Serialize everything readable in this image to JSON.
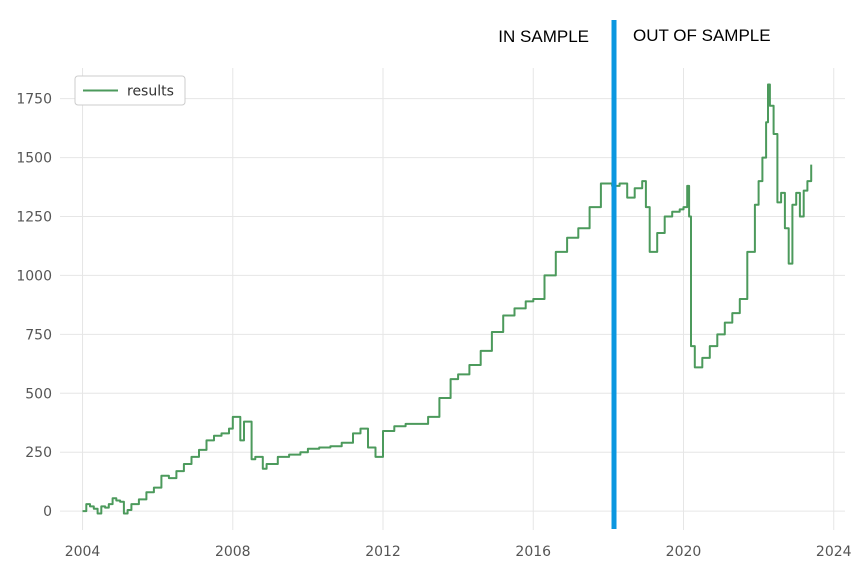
{
  "chart_data": {
    "type": "line",
    "title": "",
    "xlabel": "",
    "ylabel": "",
    "xlim": [
      2003.4,
      2024.3
    ],
    "ylim": [
      -80,
      1880
    ],
    "grid": true,
    "legend_position": "top-left",
    "x_ticks": [
      2004,
      2008,
      2012,
      2016,
      2020,
      2024
    ],
    "y_ticks": [
      0,
      250,
      500,
      750,
      1000,
      1250,
      1500,
      1750
    ],
    "x_tick_labels": [
      "2004",
      "2008",
      "2012",
      "2016",
      "2020",
      "2024"
    ],
    "y_tick_labels": [
      "0",
      "250",
      "500",
      "750",
      "1000",
      "1250",
      "1500",
      "1750"
    ],
    "series": [
      {
        "name": "results",
        "color": "#4c9a5c",
        "x": [
          2004.0,
          2004.1,
          2004.2,
          2004.3,
          2004.4,
          2004.5,
          2004.6,
          2004.7,
          2004.8,
          2004.9,
          2005.0,
          2005.1,
          2005.2,
          2005.3,
          2005.5,
          2005.7,
          2005.9,
          2006.1,
          2006.3,
          2006.5,
          2006.7,
          2006.9,
          2007.1,
          2007.3,
          2007.5,
          2007.7,
          2007.9,
          2008.0,
          2008.2,
          2008.3,
          2008.5,
          2008.6,
          2008.8,
          2008.9,
          2009.2,
          2009.5,
          2009.8,
          2010.0,
          2010.3,
          2010.6,
          2010.9,
          2011.2,
          2011.4,
          2011.6,
          2011.8,
          2012.0,
          2012.3,
          2012.6,
          2012.9,
          2013.2,
          2013.5,
          2013.8,
          2014.0,
          2014.3,
          2014.6,
          2014.9,
          2015.2,
          2015.5,
          2015.8,
          2016.0,
          2016.3,
          2016.6,
          2016.9,
          2017.2,
          2017.5,
          2017.8,
          2018.0,
          2018.1,
          2018.3,
          2018.5,
          2018.7,
          2018.9,
          2019.0,
          2019.1,
          2019.3,
          2019.5,
          2019.7,
          2019.9,
          2020.0,
          2020.1,
          2020.15,
          2020.2,
          2020.3,
          2020.5,
          2020.7,
          2020.9,
          2021.1,
          2021.3,
          2021.5,
          2021.7,
          2021.9,
          2022.0,
          2022.1,
          2022.2,
          2022.25,
          2022.3,
          2022.4,
          2022.5,
          2022.6,
          2022.7,
          2022.8,
          2022.9,
          2023.0,
          2023.1,
          2023.2,
          2023.3,
          2023.4
        ],
        "values": [
          0,
          30,
          20,
          10,
          -10,
          20,
          15,
          30,
          55,
          45,
          40,
          -10,
          5,
          30,
          50,
          80,
          100,
          150,
          140,
          170,
          200,
          230,
          260,
          300,
          320,
          330,
          350,
          400,
          300,
          380,
          220,
          230,
          180,
          200,
          230,
          240,
          250,
          265,
          270,
          275,
          290,
          330,
          350,
          270,
          230,
          340,
          360,
          370,
          370,
          400,
          480,
          560,
          580,
          620,
          680,
          760,
          830,
          860,
          890,
          900,
          1000,
          1100,
          1160,
          1200,
          1290,
          1390,
          1390,
          1380,
          1390,
          1330,
          1370,
          1400,
          1290,
          1100,
          1180,
          1250,
          1270,
          1280,
          1290,
          1380,
          1250,
          700,
          610,
          650,
          700,
          750,
          800,
          840,
          900,
          1100,
          1300,
          1400,
          1500,
          1650,
          1810,
          1720,
          1600,
          1310,
          1350,
          1200,
          1050,
          1300,
          1350,
          1250,
          1360,
          1400,
          1470
        ]
      }
    ],
    "annotations": [
      {
        "text": "IN SAMPLE"
      },
      {
        "text": "OUT OF SAMPLE"
      }
    ],
    "split_line": {
      "x": 2018.15,
      "color": "#0b97e0"
    }
  }
}
